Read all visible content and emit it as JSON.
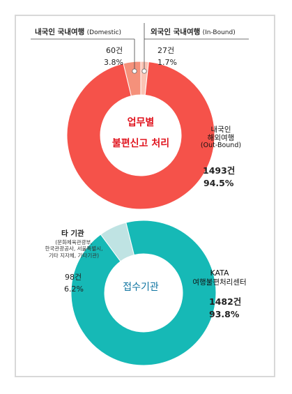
{
  "chart_data": [
    {
      "type": "pie",
      "donut": true,
      "center_label": [
        "업무별",
        "불편신고 처리"
      ],
      "slices": [
        {
          "name": "내국인 국내여행",
          "name_sub": "(Domestic)",
          "count": "60건",
          "value": 3.8,
          "percent_label": "3.8%",
          "color": "#f5917b"
        },
        {
          "name": "외국인 국내여행",
          "name_sub": "(In-Bound)",
          "count": "27건",
          "value": 1.7,
          "percent_label": "1.7%",
          "color": "#fbc3b4"
        },
        {
          "name_lines": [
            "내국인",
            "해외여행"
          ],
          "name_sub": "(Out-Bound)",
          "count": "1493건",
          "value": 94.5,
          "percent_label": "94.5%",
          "color": "#f5524a"
        }
      ]
    },
    {
      "type": "pie",
      "donut": true,
      "center_label": [
        "접수기관"
      ],
      "slices": [
        {
          "name": "타 기관",
          "name_sub_lines": [
            "(문화체육관광부,",
            "한국관광공사, 서울특별시,",
            "기타 지자체, 기타기관)"
          ],
          "count": "98건",
          "value": 6.2,
          "percent_label": "6.2%",
          "color": "#bfe3e3"
        },
        {
          "name_lines": [
            "KATA",
            "여행불편처리센터"
          ],
          "count": "1482건",
          "value": 93.8,
          "percent_label": "93.8%",
          "color": "#16b9b6"
        }
      ]
    }
  ]
}
